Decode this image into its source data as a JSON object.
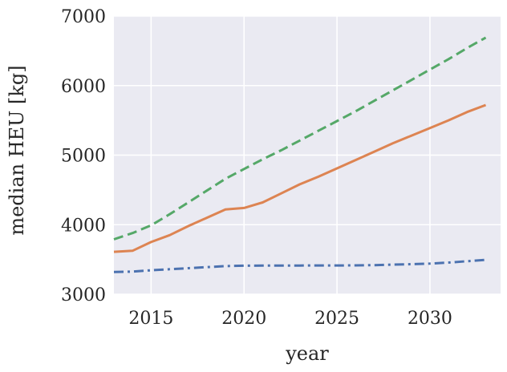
{
  "chart_data": {
    "type": "line",
    "title": "",
    "xlabel": "year",
    "ylabel": "median HEU [kg]",
    "xlim": [
      2013.0,
      2033.8
    ],
    "ylim": [
      3000,
      7000
    ],
    "xticks": [
      2015,
      2020,
      2025,
      2030
    ],
    "yticks": [
      3000,
      4000,
      5000,
      6000,
      7000
    ],
    "grid": true,
    "background": "#eaeaf2",
    "series": [
      {
        "name": "series-1",
        "style": "dashdot",
        "color": "#4c72b0",
        "x": [
          2013,
          2014,
          2015,
          2016,
          2017,
          2018,
          2019,
          2020,
          2021,
          2022,
          2023,
          2024,
          2025,
          2026,
          2027,
          2028,
          2029,
          2030,
          2031,
          2032,
          2033
        ],
        "y": [
          3320,
          3325,
          3345,
          3360,
          3375,
          3390,
          3405,
          3410,
          3412,
          3413,
          3413,
          3414,
          3414,
          3415,
          3418,
          3425,
          3432,
          3440,
          3455,
          3475,
          3495
        ]
      },
      {
        "name": "series-2",
        "style": "solid",
        "color": "#dd8452",
        "x": [
          2013,
          2014,
          2015,
          2016,
          2017,
          2018,
          2019,
          2020,
          2021,
          2022,
          2023,
          2024,
          2025,
          2026,
          2027,
          2028,
          2029,
          2030,
          2031,
          2032,
          2033
        ],
        "y": [
          3610,
          3625,
          3750,
          3850,
          3980,
          4100,
          4220,
          4240,
          4320,
          4450,
          4580,
          4690,
          4810,
          4930,
          5050,
          5170,
          5280,
          5390,
          5500,
          5620,
          5720
        ]
      },
      {
        "name": "series-3",
        "style": "dashed",
        "color": "#55a868",
        "x": [
          2013,
          2014,
          2015,
          2016,
          2017,
          2018,
          2019,
          2020,
          2021,
          2022,
          2023,
          2024,
          2025,
          2026,
          2027,
          2028,
          2029,
          2030,
          2031,
          2032,
          2033
        ],
        "y": [
          3790,
          3880,
          3990,
          4150,
          4320,
          4490,
          4660,
          4800,
          4940,
          5070,
          5210,
          5350,
          5490,
          5630,
          5780,
          5930,
          6080,
          6230,
          6380,
          6540,
          6690
        ]
      }
    ]
  }
}
